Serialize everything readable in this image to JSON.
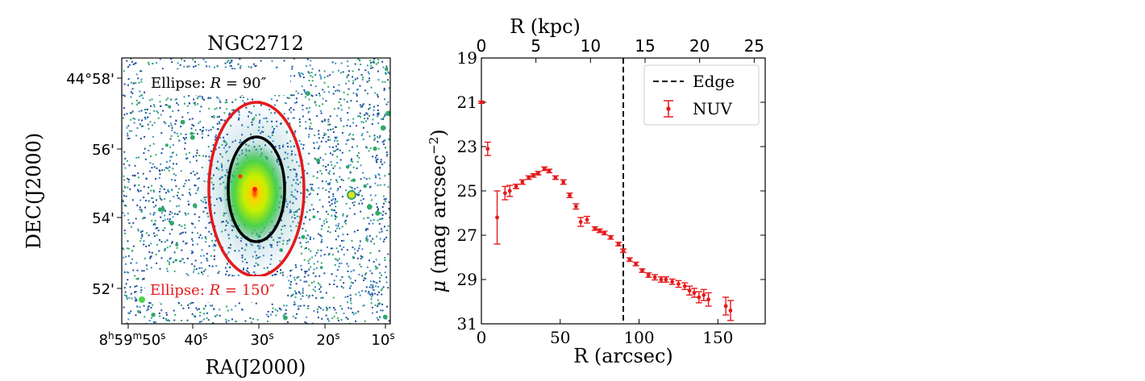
{
  "image_panel": {
    "title": "NGC2712",
    "ra_label": "RA(J2000)",
    "dec_label": "DEC(J2000)",
    "ra_ticks": [
      {
        "h": "8",
        "m": "59",
        "s": "50",
        "full": true
      },
      {
        "s": "40"
      },
      {
        "s": "30"
      },
      {
        "s": "20"
      },
      {
        "s": "10"
      }
    ],
    "dec_ticks": [
      "44°58'",
      "56'",
      "54'",
      "52'"
    ],
    "ellipse_inner": {
      "text": "Ellipse: ",
      "var": "R",
      "value": " = 90″",
      "color": "#000000"
    },
    "ellipse_outer": {
      "text": "Ellipse: ",
      "var": "R",
      "value": " = 150″",
      "color": "#e41a1c"
    },
    "colors": {
      "background": "#ffffff",
      "noise_dark": "#1f4e9a",
      "noise_mid": "#3a8fc8",
      "noise_green": "#2fa86a"
    }
  },
  "chart_data": {
    "type": "scatter",
    "xlabel": "R (arcsec)",
    "ylabel": "μ (mag arcsec⁻²)",
    "ylabel_parts": {
      "mu": "μ",
      "text": " (mag arcsec",
      "sup": "−2",
      "close": ")"
    },
    "top_xlabel": "R (kpc)",
    "xlim": [
      0,
      180
    ],
    "ylim": [
      31,
      19
    ],
    "xticks": [
      0,
      50,
      100,
      150
    ],
    "yticks": [
      19,
      21,
      23,
      25,
      27,
      29,
      31
    ],
    "top_ticks": [
      0,
      5,
      10,
      15,
      20,
      25
    ],
    "top_ticks_arcsec": [
      0,
      34.6,
      69.2,
      103.8,
      138.4,
      173.0
    ],
    "edge_x": 90,
    "legend": {
      "edge": "Edge",
      "series": "NUV",
      "position": "top-right"
    },
    "series": [
      {
        "name": "NUV",
        "color": "#e41a1c",
        "x": [
          0,
          4,
          10,
          15,
          18,
          22,
          26,
          30,
          33,
          36,
          40,
          43,
          47,
          52,
          56,
          60,
          63,
          67,
          72,
          75,
          78,
          82,
          87,
          90,
          94,
          98,
          102,
          106,
          110,
          114,
          117,
          121,
          125,
          129,
          132,
          135,
          138,
          141,
          144,
          155,
          158
        ],
        "y": [
          21.0,
          23.1,
          26.2,
          25.1,
          25.0,
          24.8,
          24.6,
          24.4,
          24.3,
          24.2,
          24.0,
          24.1,
          24.4,
          24.6,
          25.2,
          25.7,
          26.4,
          26.3,
          26.7,
          26.8,
          26.9,
          27.1,
          27.4,
          27.7,
          28.1,
          28.3,
          28.6,
          28.8,
          28.9,
          29.0,
          29.0,
          29.1,
          29.2,
          29.3,
          29.5,
          29.6,
          29.8,
          29.7,
          29.9,
          30.2,
          30.4
        ],
        "yerr": [
          0.05,
          0.3,
          1.2,
          0.3,
          0.25,
          0.1,
          0.1,
          0.08,
          0.08,
          0.08,
          0.08,
          0.08,
          0.08,
          0.1,
          0.1,
          0.12,
          0.2,
          0.15,
          0.08,
          0.08,
          0.08,
          0.08,
          0.08,
          0.08,
          0.08,
          0.08,
          0.08,
          0.1,
          0.12,
          0.12,
          0.12,
          0.12,
          0.15,
          0.15,
          0.2,
          0.2,
          0.25,
          0.25,
          0.3,
          0.4,
          0.45
        ]
      }
    ]
  }
}
